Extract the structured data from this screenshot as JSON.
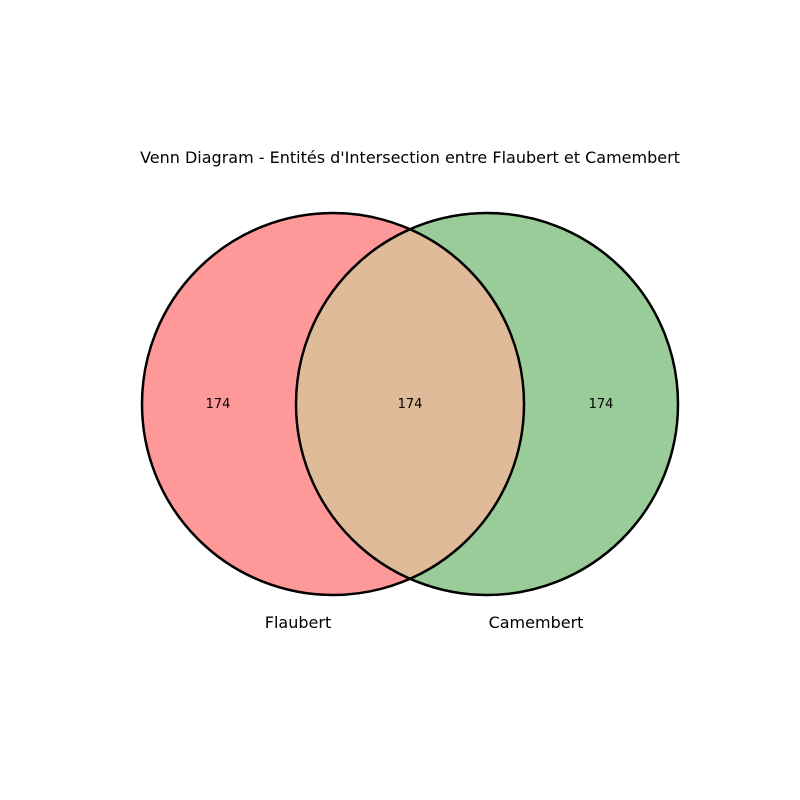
{
  "diagram": {
    "type": "venn",
    "title": "Venn Diagram - Entités d'Intersection entre Flaubert et Camembert",
    "sets": [
      {
        "name": "Flaubert",
        "color": "#ff9999",
        "only_count": "174"
      },
      {
        "name": "Camembert",
        "color": "#99cc99",
        "only_count": "174"
      }
    ],
    "intersection": {
      "count": "174",
      "color": "#e0bb99"
    },
    "outline_color": "#000000"
  }
}
